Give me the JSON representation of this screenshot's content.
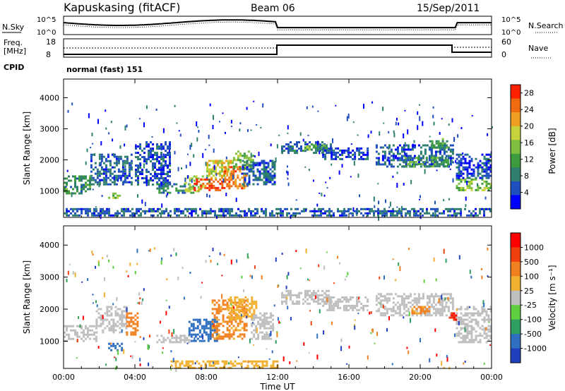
{
  "header": {
    "station": "Kapuskasing (fitACF)",
    "beam": "Beam 06",
    "date": "15/Sep/2011"
  },
  "summary_panel": {
    "left_labels": {
      "sky": "N.Sky",
      "freq_line1": "Freq.",
      "freq_line2": "[MHz]",
      "cpid": "CPID"
    },
    "right_labels": {
      "search": "N.Search",
      "nave": "Nave"
    },
    "noise_ticks_left": [
      "10^5",
      "10^0"
    ],
    "noise_ticks_right": [
      "10^5",
      "10^0"
    ],
    "freq_ticks": [
      "18",
      "8"
    ],
    "nave_ticks": [
      "60",
      "0"
    ],
    "cpid_text": "normal (fast) 151"
  },
  "colors": {
    "axis": "#000000",
    "power_scale": [
      "#0000ff",
      "#1f4fbf",
      "#2f7f6f",
      "#3c9b3c",
      "#7fbf3f",
      "#c7d33c",
      "#f0a020",
      "#f06a10",
      "#ff2000"
    ],
    "velocity_scale": [
      "#1f3fbf",
      "#2f6fbf",
      "#2f9f5f",
      "#5fcf3f",
      "#bfbfbf",
      "#f0b030",
      "#f08020",
      "#f04010",
      "#ff0000"
    ]
  },
  "chart_data": [
    {
      "type": "heatmap",
      "name": "power",
      "title": "",
      "xlabel": "Time UT",
      "ylabel": "Slant Range [km]",
      "xlim": [
        0,
        24
      ],
      "ylim": [
        150,
        4600
      ],
      "x_ticks": [
        "00:00",
        "04:00",
        "08:00",
        "12:00",
        "16:00",
        "20:00",
        "00:00"
      ],
      "y_ticks": [
        "1000",
        "2000",
        "3000",
        "4000"
      ],
      "colorbar_label": "Power [dB]",
      "colorbar_ticks": [
        "4",
        "8",
        "12",
        "16",
        "20",
        "24",
        "28"
      ],
      "colorbar_range": [
        0,
        30
      ],
      "regions": [
        {
          "t0": 0.0,
          "t1": 1.5,
          "r0": 900,
          "r1": 1500,
          "level": 10
        },
        {
          "t0": 1.5,
          "t1": 3.8,
          "r0": 1200,
          "r1": 2200,
          "level": 6
        },
        {
          "t0": 2.5,
          "t1": 3.2,
          "r0": 750,
          "r1": 950,
          "level": 14
        },
        {
          "t0": 4.0,
          "t1": 6.0,
          "r0": 1200,
          "r1": 2600,
          "level": 5
        },
        {
          "t0": 5.2,
          "t1": 7.3,
          "r0": 950,
          "r1": 1250,
          "level": 9
        },
        {
          "t0": 6.8,
          "t1": 7.8,
          "r0": 1000,
          "r1": 1500,
          "level": 16
        },
        {
          "t0": 7.3,
          "t1": 9.0,
          "r0": 1000,
          "r1": 1400,
          "level": 26
        },
        {
          "t0": 8.0,
          "t1": 9.5,
          "r0": 1400,
          "r1": 2000,
          "level": 18
        },
        {
          "t0": 9.0,
          "t1": 10.2,
          "r0": 1100,
          "r1": 1800,
          "level": 24
        },
        {
          "t0": 9.5,
          "t1": 10.6,
          "r0": 1700,
          "r1": 2300,
          "level": 14
        },
        {
          "t0": 10.0,
          "t1": 11.8,
          "r0": 1200,
          "r1": 2000,
          "level": 6
        },
        {
          "t0": 12.2,
          "t1": 15.0,
          "r0": 2200,
          "r1": 2600,
          "level": 7
        },
        {
          "t0": 13.5,
          "t1": 14.8,
          "r0": 2300,
          "r1": 2500,
          "level": 13
        },
        {
          "t0": 14.5,
          "t1": 17.0,
          "r0": 2000,
          "r1": 2400,
          "level": 5
        },
        {
          "t0": 17.5,
          "t1": 21.8,
          "r0": 1800,
          "r1": 2500,
          "level": 6
        },
        {
          "t0": 19.0,
          "t1": 21.5,
          "r0": 1800,
          "r1": 2100,
          "level": 11
        },
        {
          "t0": 20.5,
          "t1": 21.5,
          "r0": 2400,
          "r1": 2700,
          "level": 11
        },
        {
          "t0": 22.0,
          "t1": 24.0,
          "r0": 1000,
          "r1": 1400,
          "level": 15
        },
        {
          "t0": 22.0,
          "t1": 24.0,
          "r0": 1400,
          "r1": 2200,
          "level": 5
        },
        {
          "t0": 0.0,
          "t1": 24.0,
          "r0": 200,
          "r1": 450,
          "level": 6
        }
      ]
    },
    {
      "type": "heatmap",
      "name": "velocity",
      "title": "",
      "xlabel": "Time UT",
      "ylabel": "Slant Range [km]",
      "xlim": [
        0,
        24
      ],
      "ylim": [
        150,
        4600
      ],
      "x_ticks": [
        "00:00",
        "04:00",
        "08:00",
        "12:00",
        "16:00",
        "20:00",
        "00:00"
      ],
      "y_ticks": [
        "1000",
        "2000",
        "3000",
        "4000"
      ],
      "colorbar_label": "Velocity [m s⁻¹]",
      "colorbar_ticks": [
        "1000",
        "500",
        "100",
        "25",
        "-25",
        "-100",
        "-500",
        "-1000"
      ],
      "regions": [
        {
          "t0": 0.0,
          "t1": 1.8,
          "r0": 1000,
          "r1": 1500,
          "level": 0
        },
        {
          "t0": 1.8,
          "t1": 3.5,
          "r0": 1300,
          "r1": 2100,
          "level": 0
        },
        {
          "t0": 2.5,
          "t1": 3.3,
          "r0": 750,
          "r1": 950,
          "level": 200
        },
        {
          "t0": 3.5,
          "t1": 4.2,
          "r0": 1200,
          "r1": 1900,
          "level": -200
        },
        {
          "t0": 5.2,
          "t1": 7.0,
          "r0": 950,
          "r1": 1200,
          "level": 0
        },
        {
          "t0": 7.0,
          "t1": 8.6,
          "r0": 1000,
          "r1": 1700,
          "level": 200
        },
        {
          "t0": 8.3,
          "t1": 10.3,
          "r0": 1100,
          "r1": 2300,
          "level": -150
        },
        {
          "t0": 9.2,
          "t1": 10.8,
          "r0": 1700,
          "r1": 2400,
          "level": -60
        },
        {
          "t0": 10.5,
          "t1": 11.8,
          "r0": 1100,
          "r1": 1900,
          "level": 0
        },
        {
          "t0": 12.2,
          "t1": 15.0,
          "r0": 2200,
          "r1": 2600,
          "level": 0
        },
        {
          "t0": 14.5,
          "t1": 17.0,
          "r0": 2000,
          "r1": 2400,
          "level": 0
        },
        {
          "t0": 17.5,
          "t1": 21.8,
          "r0": 1800,
          "r1": 2500,
          "level": 0
        },
        {
          "t0": 19.5,
          "t1": 20.5,
          "r0": 1900,
          "r1": 2100,
          "level": -150
        },
        {
          "t0": 21.6,
          "t1": 22.0,
          "r0": 1700,
          "r1": 1900,
          "level": -900
        },
        {
          "t0": 22.0,
          "t1": 24.0,
          "r0": 1000,
          "r1": 1400,
          "level": 0
        },
        {
          "t0": 22.0,
          "t1": 24.0,
          "r0": 1400,
          "r1": 2100,
          "level": 0
        },
        {
          "t0": 6.0,
          "t1": 12.0,
          "r0": 200,
          "r1": 400,
          "level": -60
        }
      ]
    }
  ]
}
